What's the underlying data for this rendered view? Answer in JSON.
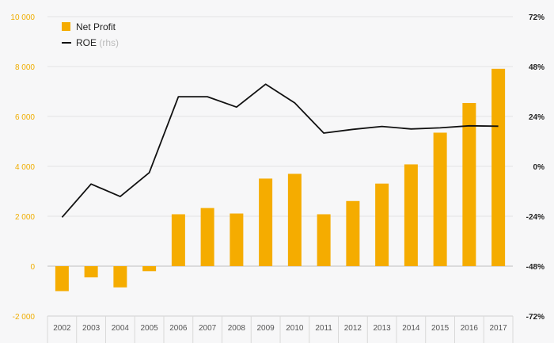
{
  "chart_data": {
    "type": "bar",
    "categories": [
      "2002",
      "2003",
      "2004",
      "2005",
      "2006",
      "2007",
      "2008",
      "2009",
      "2010",
      "2011",
      "2012",
      "2013",
      "2014",
      "2015",
      "2016",
      "2017"
    ],
    "series": [
      {
        "name": "Net Profit",
        "axis": "left",
        "kind": "bar",
        "values": [
          -1000,
          -450,
          -850,
          -200,
          2080,
          2330,
          2110,
          3510,
          3700,
          2080,
          2610,
          3310,
          4080,
          5350,
          6540,
          7910
        ]
      },
      {
        "name": "ROE",
        "axis": "right",
        "kind": "line",
        "values": [
          -24.5,
          -8.5,
          -14.5,
          -3,
          33.5,
          33.5,
          28.5,
          39.5,
          30.5,
          16,
          17.8,
          19.2,
          18,
          18.5,
          19.5,
          19.3
        ]
      }
    ],
    "ylim": [
      -2000,
      10000
    ],
    "y2lim": [
      -72,
      72
    ],
    "yticks": [
      "-2 000",
      "0",
      "2 000",
      "4 000",
      "6 000",
      "8 000",
      "10 000"
    ],
    "y2ticks": [
      "-72%",
      "-48%",
      "-24%",
      "0%",
      "24%",
      "48%",
      "72%"
    ],
    "legend": {
      "position": "top-left",
      "items": [
        {
          "label": "Net Profit",
          "suffix": "",
          "color": "#f5ac00",
          "symbol": "square"
        },
        {
          "label": "ROE",
          "suffix": "(rhs)",
          "color": "#111111",
          "symbol": "line"
        }
      ]
    },
    "colors": {
      "bar": "#f5ac00",
      "line": "#111111",
      "left_axis_text": "#f0ad00",
      "grid": "#e3e3e3"
    },
    "grid": true
  }
}
